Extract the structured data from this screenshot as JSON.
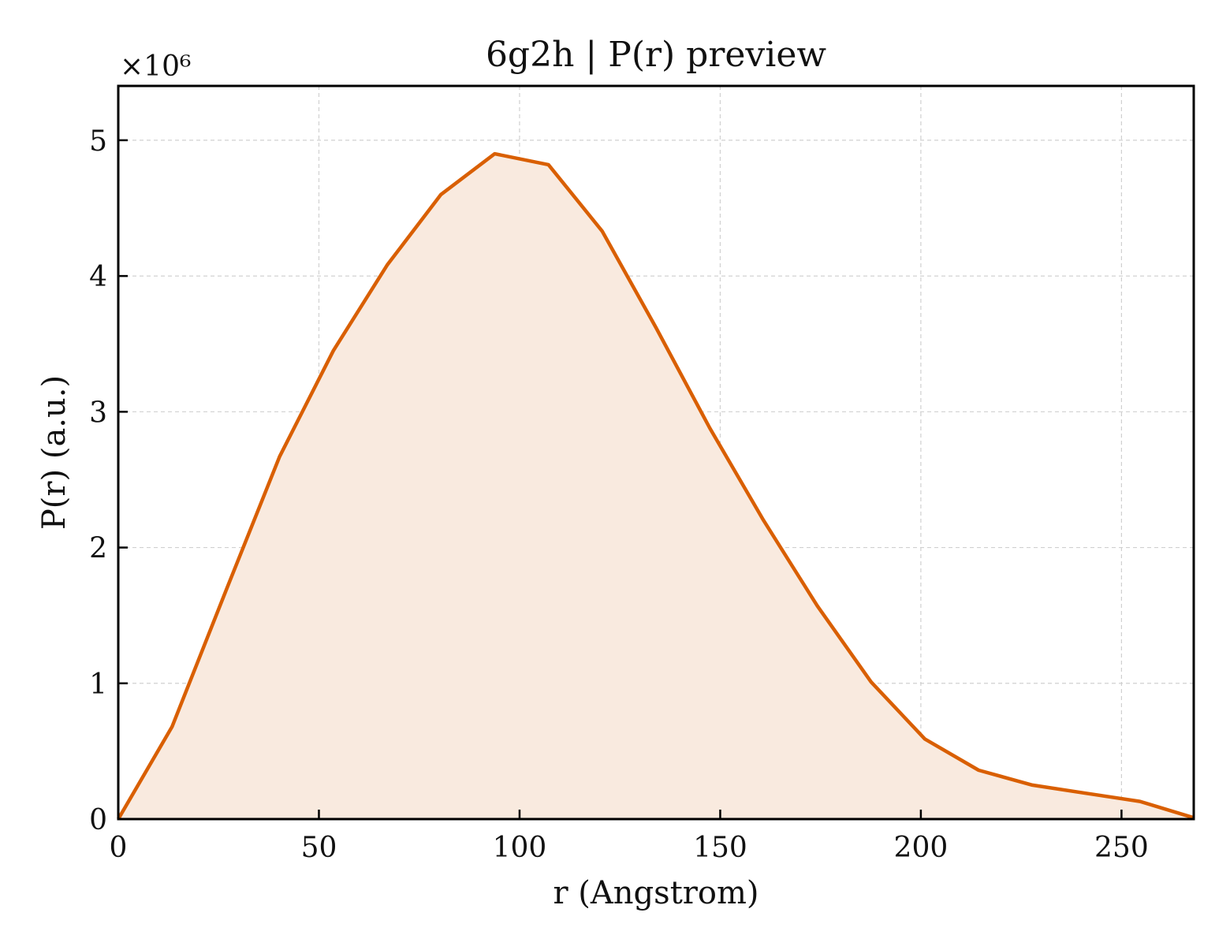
{
  "chart_data": {
    "type": "area",
    "title": "6g2h | P(r) preview",
    "xlabel": "r (Angstrom)",
    "ylabel": "P(r) (a.u.)",
    "y_multiplier_label": "×10⁶",
    "xlim": [
      0,
      268
    ],
    "ylim": [
      0,
      5.4
    ],
    "y_scale_factor": 1000000,
    "xticks": [
      0,
      50,
      100,
      150,
      200,
      250
    ],
    "yticks": [
      0,
      1,
      2,
      3,
      4,
      5
    ],
    "grid": true,
    "colors": {
      "line": "#d95f02",
      "fill": "#f9eadf",
      "grid": "#d0d0d0"
    },
    "series": [
      {
        "x": [
          0,
          13.4,
          26.8,
          40.2,
          53.6,
          67.0,
          80.4,
          93.8,
          107.2,
          120.6,
          134.0,
          147.4,
          160.8,
          174.2,
          187.6,
          201.0,
          214.4,
          227.8,
          241.2,
          254.6,
          268.0
        ],
        "y": [
          0.0,
          0.68,
          1.68,
          2.67,
          3.45,
          4.08,
          4.6,
          4.9,
          4.82,
          4.33,
          3.62,
          2.88,
          2.2,
          1.57,
          1.01,
          0.59,
          0.36,
          0.25,
          0.19,
          0.13,
          0.01
        ]
      }
    ]
  }
}
